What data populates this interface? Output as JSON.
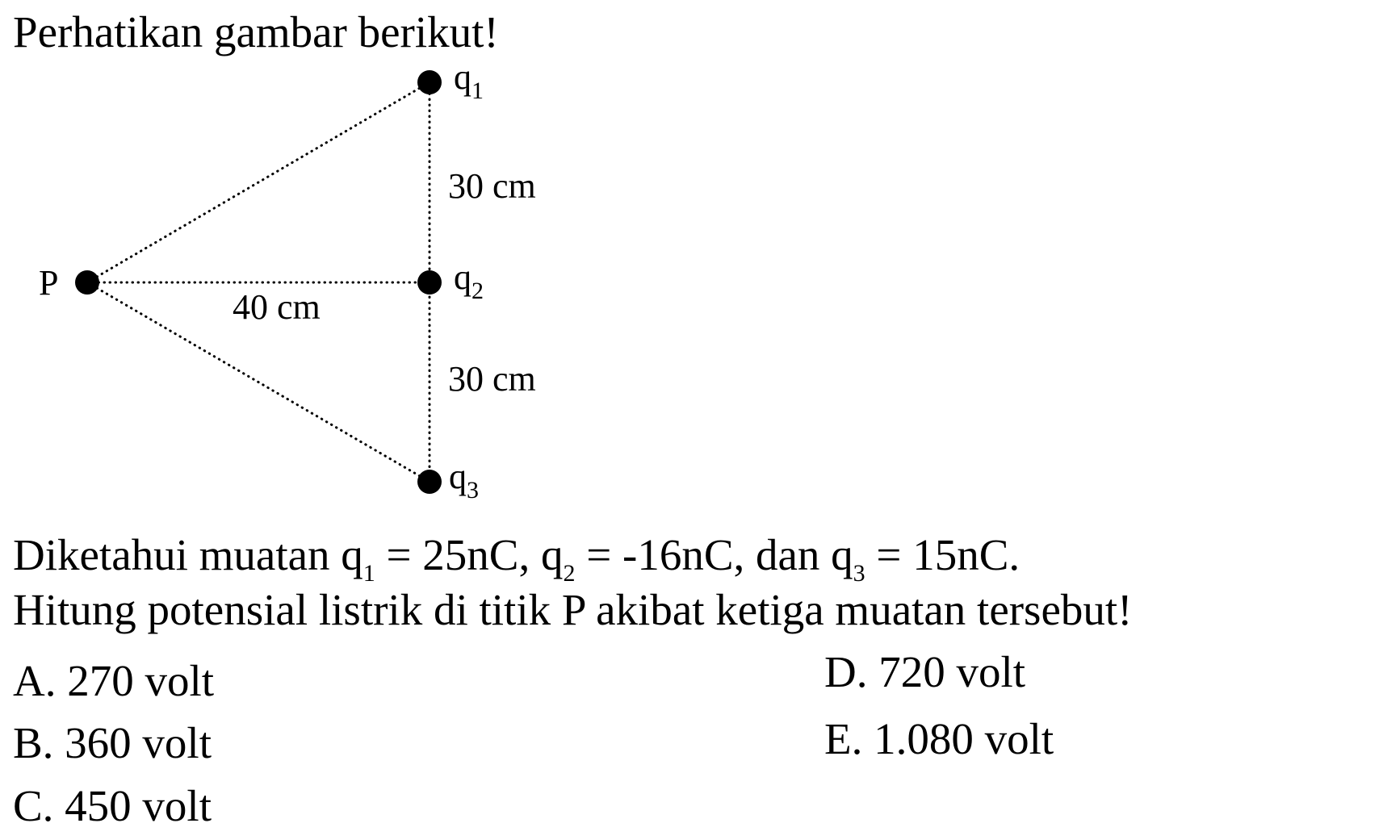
{
  "intro": "Perhatikan gambar berikut!",
  "diagram": {
    "points": [
      {
        "label": "P"
      },
      {
        "label": "q",
        "sub": "1"
      },
      {
        "label": "q",
        "sub": "2"
      },
      {
        "label": "q",
        "sub": "3"
      }
    ],
    "distances": [
      "30 cm",
      "40 cm",
      "30 cm"
    ]
  },
  "question": {
    "line1": [
      "Diketahui muatan q",
      "1",
      " = 25nC, q",
      "2",
      " = -16nC, dan q",
      "3",
      " = 15nC."
    ],
    "line2": "Hitung potensial listrik di titik P akibat ketiga muatan tersebut!"
  },
  "options": [
    "A. 270 volt",
    "B. 360 volt",
    "C. 450 volt",
    "D. 720 volt",
    "E. 1.080 volt"
  ]
}
